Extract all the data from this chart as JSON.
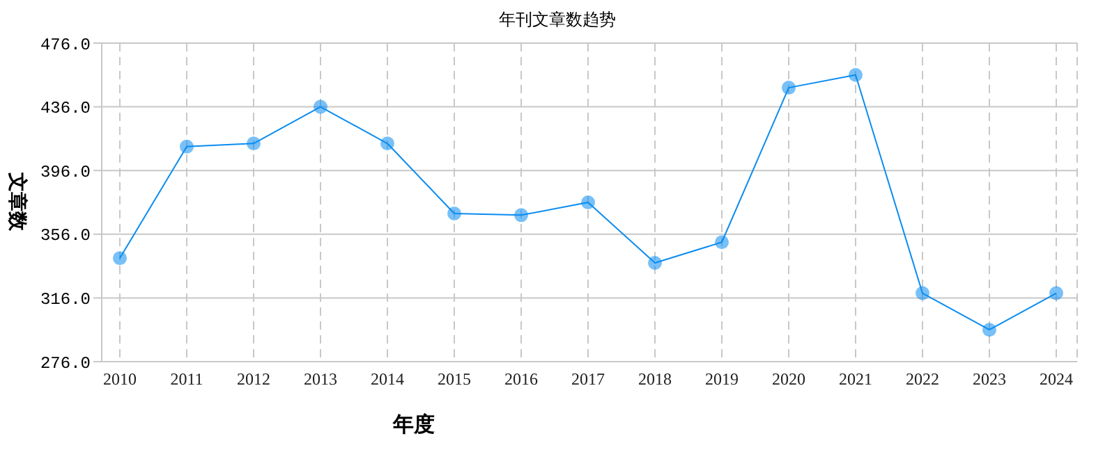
{
  "chart_data": {
    "type": "line",
    "title": "年刊文章数趋势",
    "xlabel": "年度",
    "ylabel": "文章数",
    "categories": [
      "2010",
      "2011",
      "2012",
      "2013",
      "2014",
      "2015",
      "2016",
      "2017",
      "2018",
      "2019",
      "2020",
      "2021",
      "2022",
      "2023",
      "2024"
    ],
    "series": [
      {
        "color": "#0a8cf0",
        "values": [
          341,
          411,
          413,
          436,
          413,
          369,
          368,
          376,
          338,
          351,
          448,
          456,
          319,
          296,
          319
        ]
      }
    ],
    "ylim": [
      276,
      476
    ],
    "yticks": [
      {
        "value": 276,
        "label": "276.0"
      },
      {
        "value": 316,
        "label": "316.0"
      },
      {
        "value": 356,
        "label": "356.0"
      },
      {
        "value": 396,
        "label": "396.0"
      },
      {
        "value": 436,
        "label": "436.0"
      },
      {
        "value": 476,
        "label": "476.0"
      }
    ],
    "grid": true,
    "marker": "circle",
    "line_style": "solid"
  }
}
